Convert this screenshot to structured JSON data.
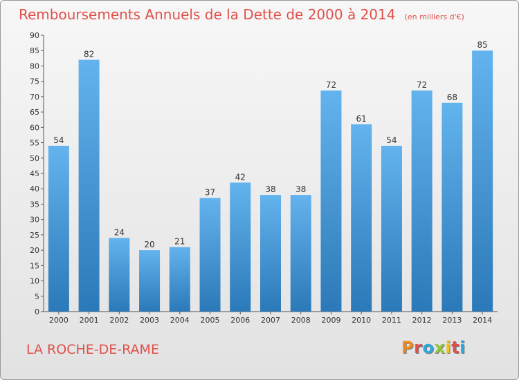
{
  "header": {
    "title": "Remboursements Annuels de la Dette de 2000 à 2014",
    "subtitle": "(en milliers d'€)"
  },
  "footer": {
    "commune": "LA ROCHE-DE-RAME",
    "logo_text": "Proxiti"
  },
  "colors": {
    "title": "#e0504a",
    "bar_top": "#63b3ee",
    "bar_bottom": "#2b79b8",
    "logo_letters": [
      "#f08a1c",
      "#e0504a",
      "#2fa7df",
      "#8fc73e",
      "#f0c419",
      "#e0504a",
      "#2fa7df"
    ]
  },
  "chart_data": {
    "type": "bar",
    "categories": [
      "2000",
      "2001",
      "2002",
      "2003",
      "2004",
      "2005",
      "2006",
      "2007",
      "2008",
      "2009",
      "2010",
      "2011",
      "2012",
      "2013",
      "2014"
    ],
    "values": [
      54,
      82,
      24,
      20,
      21,
      37,
      42,
      38,
      38,
      72,
      61,
      54,
      72,
      68,
      85
    ],
    "ylim": [
      0,
      90
    ],
    "yticks": [
      0,
      5,
      10,
      15,
      20,
      25,
      30,
      35,
      40,
      45,
      50,
      55,
      60,
      65,
      70,
      75,
      80,
      85,
      90
    ],
    "grid": false,
    "data_labels": true
  }
}
